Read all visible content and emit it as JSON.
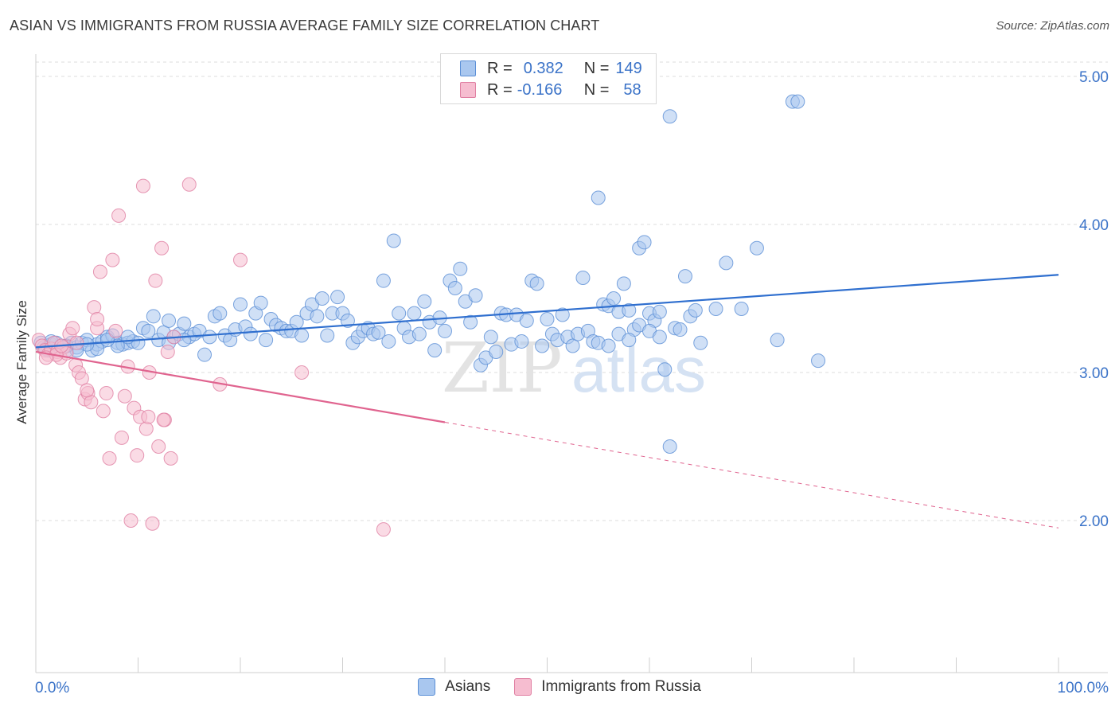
{
  "title": "ASIAN VS IMMIGRANTS FROM RUSSIA AVERAGE FAMILY SIZE CORRELATION CHART",
  "source": "Source: ZipAtlas.com",
  "watermark_zip": "ZIP",
  "watermark_atlas": "atlas",
  "legend": {
    "r_label": "R =",
    "n_label": "N =",
    "rows": [
      {
        "r": "0.382",
        "n": "149",
        "color": "#a9c7ef",
        "border": "#5b8fd6"
      },
      {
        "r": "-0.166",
        "n": "58",
        "color": "#f6bdd0",
        "border": "#e07fa2"
      }
    ]
  },
  "colors": {
    "asian_fill": "#a9c7ef",
    "asian_stroke": "#5b8fd6",
    "asian_line": "#2f6fcf",
    "russia_fill": "#f6bdd0",
    "russia_stroke": "#e07fa2",
    "russia_line": "#e0648f",
    "tick_label": "#3b73c8",
    "grid": "#dcdcdc"
  },
  "chart_data": {
    "type": "scatter",
    "title": "ASIAN VS IMMIGRANTS FROM RUSSIA AVERAGE FAMILY SIZE CORRELATION CHART",
    "xlabel": "",
    "ylabel": "Average Family Size",
    "xlim": [
      0,
      100
    ],
    "ylim": [
      1.0,
      5.15
    ],
    "x_tick_labels": [
      "0.0%",
      "100.0%"
    ],
    "y_ticks": [
      2.0,
      3.0,
      4.0,
      5.0
    ],
    "y_tick_labels": [
      "2.00",
      "3.00",
      "4.00",
      "5.00"
    ],
    "grid": true,
    "legend_position": "top-center",
    "series": [
      {
        "name": "Asians",
        "r": 0.382,
        "n": 149,
        "trend": {
          "x0": 0,
          "y0": 3.17,
          "x1": 100,
          "y1": 3.66,
          "dashed_from": null
        },
        "points": [
          [
            0.5,
            3.2
          ],
          [
            0.8,
            3.17
          ],
          [
            1.2,
            3.15
          ],
          [
            1.5,
            3.19
          ],
          [
            2.0,
            3.16
          ],
          [
            2.5,
            3.18
          ],
          [
            3.0,
            3.15
          ],
          [
            3.5,
            3.2
          ],
          [
            4.0,
            3.17
          ],
          [
            4.5,
            3.2
          ],
          [
            5.0,
            3.22
          ],
          [
            5.5,
            3.15
          ],
          [
            6.0,
            3.19
          ],
          [
            6.5,
            3.21
          ],
          [
            7.0,
            3.24
          ],
          [
            7.5,
            3.25
          ],
          [
            8.0,
            3.2
          ],
          [
            8.5,
            3.19
          ],
          [
            9.0,
            3.2
          ],
          [
            9.5,
            3.21
          ],
          [
            10.0,
            3.2
          ],
          [
            10.5,
            3.3
          ],
          [
            11.0,
            3.28
          ],
          [
            11.5,
            3.38
          ],
          [
            12.0,
            3.22
          ],
          [
            12.5,
            3.27
          ],
          [
            13.0,
            3.35
          ],
          [
            13.5,
            3.24
          ],
          [
            14.0,
            3.26
          ],
          [
            14.5,
            3.33
          ],
          [
            15.0,
            3.24
          ],
          [
            15.5,
            3.26
          ],
          [
            16.0,
            3.28
          ],
          [
            16.5,
            3.12
          ],
          [
            17.0,
            3.24
          ],
          [
            17.5,
            3.38
          ],
          [
            18.0,
            3.4
          ],
          [
            18.5,
            3.25
          ],
          [
            19.0,
            3.22
          ],
          [
            19.5,
            3.29
          ],
          [
            20.0,
            3.46
          ],
          [
            20.5,
            3.31
          ],
          [
            21.0,
            3.26
          ],
          [
            21.5,
            3.4
          ],
          [
            22.0,
            3.47
          ],
          [
            22.5,
            3.22
          ],
          [
            23.0,
            3.36
          ],
          [
            23.5,
            3.32
          ],
          [
            24.0,
            3.3
          ],
          [
            24.5,
            3.28
          ],
          [
            25.0,
            3.28
          ],
          [
            25.5,
            3.34
          ],
          [
            26.0,
            3.25
          ],
          [
            26.5,
            3.4
          ],
          [
            27.0,
            3.46
          ],
          [
            27.5,
            3.38
          ],
          [
            28.0,
            3.5
          ],
          [
            28.5,
            3.25
          ],
          [
            29.0,
            3.4
          ],
          [
            29.5,
            3.51
          ],
          [
            30.0,
            3.4
          ],
          [
            30.5,
            3.35
          ],
          [
            31.0,
            3.2
          ],
          [
            31.5,
            3.24
          ],
          [
            32.0,
            3.28
          ],
          [
            32.5,
            3.3
          ],
          [
            33.0,
            3.26
          ],
          [
            33.5,
            3.27
          ],
          [
            34.0,
            3.62
          ],
          [
            34.5,
            3.21
          ],
          [
            35.0,
            3.89
          ],
          [
            35.5,
            3.4
          ],
          [
            36.0,
            3.3
          ],
          [
            36.5,
            3.24
          ],
          [
            37.0,
            3.4
          ],
          [
            37.5,
            3.26
          ],
          [
            38.0,
            3.48
          ],
          [
            38.5,
            3.34
          ],
          [
            39.0,
            3.15
          ],
          [
            39.5,
            3.37
          ],
          [
            40.0,
            3.28
          ],
          [
            40.5,
            3.62
          ],
          [
            41.0,
            3.57
          ],
          [
            41.5,
            3.7
          ],
          [
            42.0,
            3.48
          ],
          [
            42.5,
            3.34
          ],
          [
            43.0,
            3.52
          ],
          [
            43.5,
            3.05
          ],
          [
            44.0,
            3.1
          ],
          [
            44.5,
            3.24
          ],
          [
            45.0,
            3.14
          ],
          [
            45.5,
            3.4
          ],
          [
            46.0,
            3.39
          ],
          [
            46.5,
            3.19
          ],
          [
            47.0,
            3.39
          ],
          [
            47.5,
            3.21
          ],
          [
            48.0,
            3.35
          ],
          [
            48.5,
            3.62
          ],
          [
            49.0,
            3.6
          ],
          [
            49.5,
            3.18
          ],
          [
            50.0,
            3.36
          ],
          [
            50.5,
            3.26
          ],
          [
            51.0,
            3.22
          ],
          [
            51.5,
            3.39
          ],
          [
            52.0,
            3.24
          ],
          [
            52.5,
            3.18
          ],
          [
            53.0,
            3.26
          ],
          [
            53.5,
            3.64
          ],
          [
            54.0,
            3.28
          ],
          [
            54.5,
            3.21
          ],
          [
            55.0,
            4.18
          ],
          [
            55.5,
            3.46
          ],
          [
            56.0,
            3.45
          ],
          [
            56.5,
            3.5
          ],
          [
            57.0,
            3.41
          ],
          [
            57.5,
            3.6
          ],
          [
            58.0,
            3.42
          ],
          [
            58.5,
            3.29
          ],
          [
            59.0,
            3.84
          ],
          [
            59.5,
            3.88
          ],
          [
            60.0,
            3.4
          ],
          [
            60.5,
            3.35
          ],
          [
            61.0,
            3.41
          ],
          [
            61.5,
            3.02
          ],
          [
            62.0,
            4.73
          ],
          [
            62.5,
            3.3
          ],
          [
            63.0,
            3.29
          ],
          [
            63.5,
            3.65
          ],
          [
            64.0,
            3.38
          ],
          [
            64.5,
            3.42
          ],
          [
            65.0,
            3.2
          ],
          [
            66.5,
            3.43
          ],
          [
            67.5,
            3.74
          ],
          [
            69.0,
            3.43
          ],
          [
            70.5,
            3.84
          ],
          [
            72.5,
            3.22
          ],
          [
            74.0,
            4.83
          ],
          [
            74.5,
            4.83
          ],
          [
            76.5,
            3.08
          ],
          [
            55.0,
            3.2
          ],
          [
            56.0,
            3.18
          ],
          [
            57.0,
            3.26
          ],
          [
            58.0,
            3.22
          ],
          [
            59.0,
            3.32
          ],
          [
            60.0,
            3.28
          ],
          [
            61.0,
            3.24
          ],
          [
            62.0,
            2.5
          ],
          [
            14.5,
            3.22
          ],
          [
            13.0,
            3.2
          ],
          [
            9.0,
            3.24
          ],
          [
            8.0,
            3.18
          ],
          [
            7.0,
            3.22
          ],
          [
            6.0,
            3.16
          ],
          [
            5.0,
            3.19
          ],
          [
            4.0,
            3.15
          ],
          [
            3.0,
            3.18
          ],
          [
            2.0,
            3.2
          ],
          [
            1.0,
            3.16
          ],
          [
            1.5,
            3.21
          ]
        ]
      },
      {
        "name": "Immigrants from Russia",
        "r": -0.166,
        "n": 58,
        "trend": {
          "x0": 0,
          "y0": 3.14,
          "x1": 100,
          "y1": 1.95,
          "dashed_from": 40
        },
        "points": [
          [
            0.3,
            3.22
          ],
          [
            0.6,
            3.18
          ],
          [
            0.9,
            3.15
          ],
          [
            1.2,
            3.12
          ],
          [
            1.5,
            3.16
          ],
          [
            1.8,
            3.2
          ],
          [
            2.1,
            3.14
          ],
          [
            2.4,
            3.1
          ],
          [
            2.7,
            3.17
          ],
          [
            3.0,
            3.13
          ],
          [
            3.3,
            3.26
          ],
          [
            3.6,
            3.3
          ],
          [
            3.9,
            3.05
          ],
          [
            4.2,
            3.0
          ],
          [
            4.5,
            2.96
          ],
          [
            4.8,
            2.82
          ],
          [
            5.1,
            2.86
          ],
          [
            5.4,
            2.8
          ],
          [
            5.7,
            3.44
          ],
          [
            6.0,
            3.3
          ],
          [
            6.3,
            3.68
          ],
          [
            6.6,
            2.74
          ],
          [
            6.9,
            2.86
          ],
          [
            7.2,
            2.42
          ],
          [
            7.5,
            3.76
          ],
          [
            7.8,
            3.28
          ],
          [
            8.1,
            4.06
          ],
          [
            8.4,
            2.56
          ],
          [
            8.7,
            2.84
          ],
          [
            9.0,
            3.04
          ],
          [
            9.3,
            2.0
          ],
          [
            9.6,
            2.76
          ],
          [
            9.9,
            2.44
          ],
          [
            10.2,
            2.7
          ],
          [
            10.5,
            4.26
          ],
          [
            10.8,
            2.62
          ],
          [
            11.1,
            3.0
          ],
          [
            11.4,
            1.98
          ],
          [
            11.7,
            3.62
          ],
          [
            12.0,
            2.5
          ],
          [
            12.3,
            3.84
          ],
          [
            12.6,
            2.68
          ],
          [
            12.9,
            3.14
          ],
          [
            13.2,
            2.42
          ],
          [
            13.5,
            3.24
          ],
          [
            15.0,
            4.27
          ],
          [
            18.0,
            2.92
          ],
          [
            20.0,
            3.76
          ],
          [
            26.0,
            3.0
          ],
          [
            34.0,
            1.94
          ],
          [
            2.0,
            3.12
          ],
          [
            2.5,
            3.18
          ],
          [
            1.0,
            3.1
          ],
          [
            4.0,
            3.2
          ],
          [
            5.0,
            2.88
          ],
          [
            6.0,
            3.36
          ],
          [
            12.5,
            2.68
          ],
          [
            11.0,
            2.7
          ]
        ]
      }
    ]
  }
}
